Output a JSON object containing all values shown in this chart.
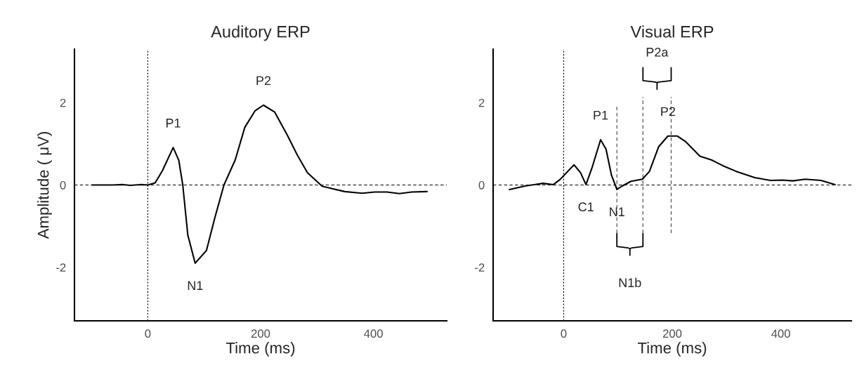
{
  "chart_data": [
    {
      "type": "line",
      "title": "Auditory ERP",
      "xlabel": "Time (ms)",
      "ylabel": "Amplitude ( μV)",
      "xlim": [
        -130,
        530
      ],
      "xticks": [
        0,
        200,
        400
      ],
      "ylim": [
        -3.3,
        3.3
      ],
      "yticks": [
        -2,
        0,
        2
      ],
      "grid": false,
      "legend": false,
      "series": [
        {
          "color": "#000000",
          "x": [
            -99,
            -62,
            -44,
            -31,
            -13,
            0,
            13,
            26,
            45,
            55,
            62,
            71,
            84,
            104,
            119,
            135,
            155,
            172,
            190,
            205,
            225,
            247,
            265,
            283,
            309,
            327,
            349,
            380,
            402,
            424,
            446,
            468,
            495
          ],
          "values": [
            0,
            0,
            0.01,
            -0.01,
            0.01,
            0,
            0.05,
            0.35,
            0.91,
            0.6,
            0,
            -1.22,
            -1.9,
            -1.59,
            -0.79,
            0,
            0.61,
            1.4,
            1.8,
            1.94,
            1.77,
            1.22,
            0.73,
            0.3,
            -0.03,
            -0.09,
            -0.16,
            -0.2,
            -0.17,
            -0.17,
            -0.21,
            -0.17,
            -0.16
          ]
        }
      ],
      "ref_lines": [
        {
          "axis": "x",
          "value": 0,
          "line_style": "dotted",
          "color": "#000000"
        },
        {
          "axis": "y",
          "value": 0,
          "line_style": "dashed",
          "color": "#000000"
        }
      ],
      "annotations": [
        {
          "text": "P1",
          "x": 45,
          "y": 0.91
        },
        {
          "text": "N1",
          "x": 84,
          "y": -1.9
        },
        {
          "text": "P2",
          "x": 205,
          "y": 1.94
        }
      ]
    },
    {
      "type": "line",
      "title": "Visual ERP",
      "xlabel": "Time (ms)",
      "xlim": [
        -130,
        530
      ],
      "xticks": [
        0,
        200,
        400
      ],
      "ylim": [
        -3.3,
        3.3
      ],
      "yticks": [
        -2,
        0,
        2
      ],
      "grid": false,
      "legend": false,
      "series": [
        {
          "color": "#000000",
          "x": [
            -100,
            -70,
            -38,
            -19,
            -7,
            19,
            31,
            41,
            52,
            68,
            78,
            88,
            98,
            107,
            124,
            145,
            158,
            175,
            192,
            209,
            225,
            251,
            272,
            293,
            318,
            352,
            381,
            403,
            422,
            445,
            474,
            500
          ],
          "values": [
            -0.11,
            -0.02,
            0.04,
            0.01,
            0.13,
            0.49,
            0.3,
            0.01,
            0.41,
            1.1,
            0.87,
            0.24,
            -0.11,
            -0.03,
            0.09,
            0.14,
            0.33,
            0.93,
            1.19,
            1.19,
            1.05,
            0.7,
            0.61,
            0.47,
            0.33,
            0.18,
            0.11,
            0.12,
            0.1,
            0.14,
            0.11,
            0.01
          ]
        }
      ],
      "ref_lines": [
        {
          "axis": "x",
          "value": 0,
          "line_style": "dotted",
          "color": "#000000"
        },
        {
          "axis": "y",
          "value": 0,
          "line_style": "dashed",
          "color": "#000000"
        },
        {
          "axis": "x",
          "value": 98,
          "line_style": "dashed",
          "color": "#555555"
        },
        {
          "axis": "x",
          "value": 146,
          "line_style": "dashed",
          "color": "#555555"
        },
        {
          "axis": "x",
          "value": 198,
          "line_style": "dashed",
          "color": "#555555"
        }
      ],
      "annotations": [
        {
          "text": "C1",
          "x": 41,
          "y": 0.01
        },
        {
          "text": "P1",
          "x": 68,
          "y": 1.1
        },
        {
          "text": "N1",
          "x": 98,
          "y": -0.11
        },
        {
          "text": "P2",
          "x": 192,
          "y": 1.19
        },
        "N1b",
        "P2a"
      ]
    }
  ]
}
